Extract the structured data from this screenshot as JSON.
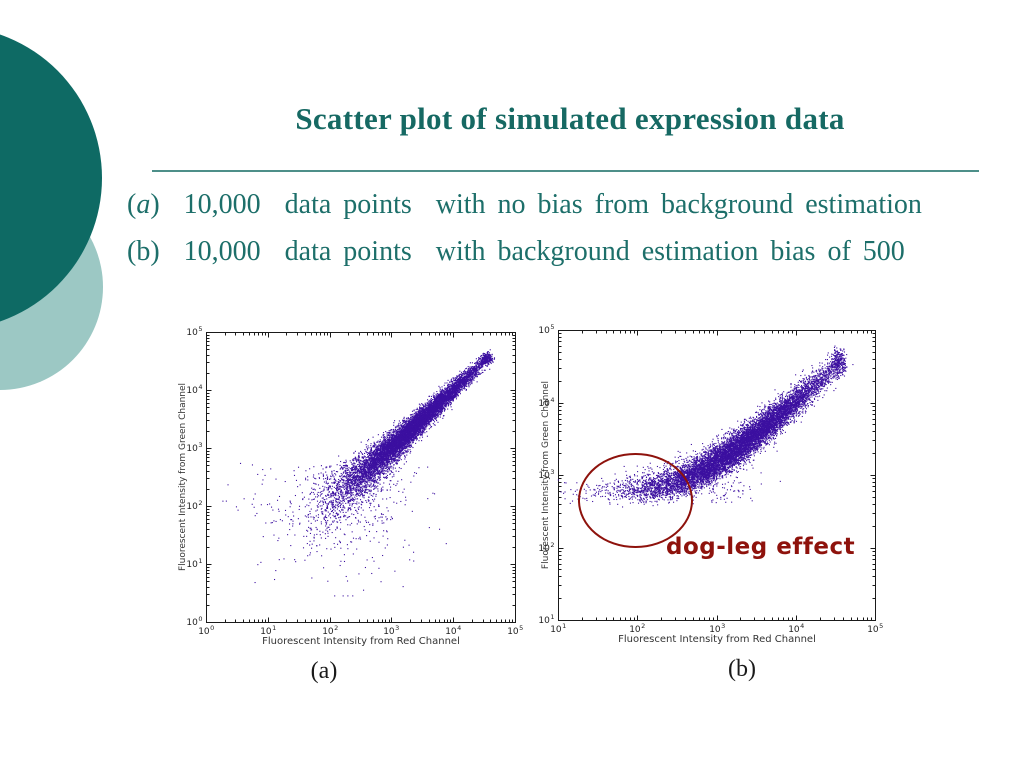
{
  "slide": {
    "title": "Scatter plot of simulated expression data",
    "line_a": {
      "open": "(",
      "letter": "a",
      "close": ")",
      "text": "  10,000  data points  with no bias from background estimation"
    },
    "line_b": {
      "open": "(",
      "letter": "b",
      "close": ")",
      "text": "  10,000  data points  with background estimation bias of 500"
    }
  },
  "colors": {
    "background": "#ffffff",
    "teal_dark": "#0e6a64",
    "teal_light": "#9cc8c4",
    "title_text": "#166963",
    "body_text": "#1d6f6a",
    "rule": "#4d8f89",
    "axis_frame": "#1a1a1a",
    "axis_text": "#333333",
    "tick_text": "#222222",
    "scatter_point": "#3c10a0",
    "annotation": "#8e120c"
  },
  "chart_data": [
    {
      "type": "scatter",
      "title": "",
      "caption": "(a)",
      "xlabel": "Fluorescent Intensity from Red Channel",
      "ylabel": "Fluorescent Intensity from Green Channel",
      "x_log_range": [
        0,
        5
      ],
      "y_log_range": [
        0,
        5
      ],
      "x_tick_exponents": [
        0,
        1,
        2,
        3,
        4,
        5
      ],
      "y_tick_exponents": [
        0,
        1,
        2,
        3,
        4,
        5
      ],
      "grid": false,
      "n_points": 10000,
      "point_color": "#3c10a0",
      "sim": {
        "seed": 1234,
        "log_mean": 3.3,
        "log_sd": 0.62,
        "log_clip": [
          1.0,
          4.55
        ],
        "channel_noise_base": 0.05,
        "channel_noise_amp": 0.8,
        "channel_noise_decay": 0.9,
        "background_bias": 0,
        "post_noise_sd": 0,
        "low_outliers": {
          "n": 380,
          "lx_mean": 2.4,
          "lx_sd": 0.5,
          "ly_top": 2.7,
          "ly_spread": 0.8,
          "ly_min": 0.45
        },
        "left_outliers": {
          "n": 30,
          "lx_range": [
            0.25,
            1.3
          ],
          "ly_mean": 2.1,
          "ly_sd": 0.28
        }
      }
    },
    {
      "type": "scatter",
      "title": "",
      "caption": "(b)",
      "xlabel": "Fluorescent Intensity from Red Channel",
      "ylabel": "Fluorescent Intensity from Green Channel",
      "x_log_range": [
        1,
        5
      ],
      "y_log_range": [
        1,
        5
      ],
      "x_tick_exponents": [
        1,
        2,
        3,
        4,
        5
      ],
      "y_tick_exponents": [
        1,
        2,
        3,
        4,
        5
      ],
      "grid": false,
      "n_points": 10000,
      "point_color": "#3c10a0",
      "sim": {
        "seed": 5678,
        "log_mean": 3.3,
        "log_sd": 0.62,
        "log_clip": [
          1.0,
          4.55
        ],
        "channel_noise_base": 0.05,
        "channel_noise_amp": 0.8,
        "channel_noise_decay": 0.9,
        "background_bias": 500,
        "post_noise_sd": 0.07,
        "low_outliers": {
          "n": 380,
          "lx_mean": 2.4,
          "lx_sd": 0.5,
          "ly_top": 2.7,
          "ly_spread": 0.8,
          "ly_min": 0.45
        },
        "left_outliers": {
          "n": 30,
          "lx_range": [
            0.25,
            1.3
          ],
          "ly_mean": 2.1,
          "ly_sd": 0.28
        }
      },
      "annotation": {
        "label": "dog-leg effect",
        "color": "#8e120c",
        "ellipse_center_log": [
          1.95,
          2.68
        ],
        "ellipse_radius_log": [
          0.7,
          0.63
        ]
      }
    }
  ]
}
